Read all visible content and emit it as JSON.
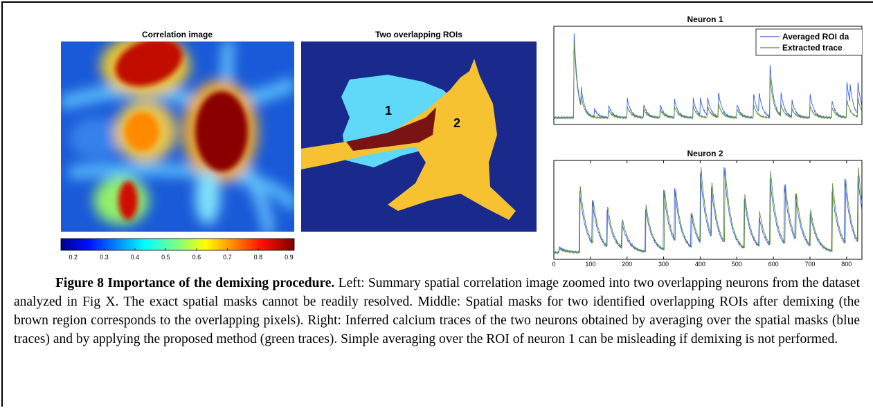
{
  "figure": {
    "panels": {
      "left": {
        "title": "Correlation image",
        "colorbar": {
          "lim": [
            0.16,
            0.917
          ],
          "ticks": [
            0.2,
            0.3,
            0.4,
            0.5,
            0.6,
            0.7,
            0.8,
            0.9
          ]
        }
      },
      "middle": {
        "title": "Two overlapping ROIs",
        "labels": [
          "1",
          "2"
        ]
      },
      "right": {
        "xlim": [
          0,
          842
        ],
        "ylim": [
          0,
          1
        ],
        "xticks": [
          0,
          100,
          200,
          300,
          400,
          500,
          600,
          700,
          800
        ],
        "legend": [
          "Averaged ROI da",
          "Extracted trace"
        ],
        "neurons": [
          {
            "title": "Neuron 1",
            "series": [
              {
                "color": "#3a5fe0",
                "events": [
                  [
                    55,
                    1.0
                  ],
                  [
                    75,
                    0.2
                  ],
                  [
                    110,
                    0.1
                  ],
                  [
                    150,
                    0.14
                  ],
                  [
                    200,
                    0.24
                  ],
                  [
                    245,
                    0.16
                  ],
                  [
                    290,
                    0.16
                  ],
                  [
                    330,
                    0.2
                  ],
                  [
                    380,
                    0.24
                  ],
                  [
                    400,
                    0.2
                  ],
                  [
                    420,
                    0.2
                  ],
                  [
                    450,
                    0.28
                  ],
                  [
                    500,
                    0.16
                  ],
                  [
                    545,
                    0.3
                  ],
                  [
                    560,
                    0.25
                  ],
                  [
                    590,
                    0.65
                  ],
                  [
                    620,
                    0.28
                  ],
                  [
                    650,
                    0.2
                  ],
                  [
                    700,
                    0.28
                  ],
                  [
                    760,
                    0.2
                  ],
                  [
                    800,
                    0.45
                  ],
                  [
                    810,
                    0.2
                  ],
                  [
                    830,
                    0.4
                  ]
                ]
              },
              {
                "color": "#5a8a3a",
                "events": [
                  [
                    55,
                    0.9
                  ],
                  [
                    75,
                    0.12
                  ],
                  [
                    150,
                    0.08
                  ],
                  [
                    200,
                    0.14
                  ],
                  [
                    245,
                    0.1
                  ],
                  [
                    290,
                    0.1
                  ],
                  [
                    330,
                    0.12
                  ],
                  [
                    380,
                    0.14
                  ],
                  [
                    420,
                    0.12
                  ],
                  [
                    450,
                    0.15
                  ],
                  [
                    500,
                    0.1
                  ],
                  [
                    545,
                    0.16
                  ],
                  [
                    590,
                    0.5
                  ],
                  [
                    620,
                    0.14
                  ],
                  [
                    650,
                    0.1
                  ],
                  [
                    700,
                    0.14
                  ],
                  [
                    760,
                    0.12
                  ],
                  [
                    800,
                    0.22
                  ],
                  [
                    830,
                    0.24
                  ]
                ]
              }
            ]
          },
          {
            "title": "Neuron 2",
            "series": [
              {
                "color": "#3a5fe0",
                "events": [
                  [
                    15,
                    0.06
                  ],
                  [
                    70,
                    0.7
                  ],
                  [
                    105,
                    0.48
                  ],
                  [
                    145,
                    0.42
                  ],
                  [
                    185,
                    0.3
                  ],
                  [
                    250,
                    0.5
                  ],
                  [
                    300,
                    0.66
                  ],
                  [
                    330,
                    0.58
                  ],
                  [
                    375,
                    0.38
                  ],
                  [
                    400,
                    0.8
                  ],
                  [
                    430,
                    0.58
                  ],
                  [
                    465,
                    0.86
                  ],
                  [
                    520,
                    0.58
                  ],
                  [
                    560,
                    0.36
                  ],
                  [
                    590,
                    0.8
                  ],
                  [
                    630,
                    0.66
                  ],
                  [
                    660,
                    0.52
                  ],
                  [
                    700,
                    0.38
                  ],
                  [
                    760,
                    0.7
                  ],
                  [
                    795,
                    0.72
                  ],
                  [
                    830,
                    0.8
                  ]
                ]
              },
              {
                "color": "#5a8a3a",
                "events": [
                  [
                    15,
                    0.04
                  ],
                  [
                    72,
                    0.75
                  ],
                  [
                    107,
                    0.5
                  ],
                  [
                    147,
                    0.45
                  ],
                  [
                    187,
                    0.33
                  ],
                  [
                    252,
                    0.52
                  ],
                  [
                    302,
                    0.7
                  ],
                  [
                    332,
                    0.6
                  ],
                  [
                    377,
                    0.4
                  ],
                  [
                    402,
                    0.85
                  ],
                  [
                    432,
                    0.6
                  ],
                  [
                    467,
                    0.9
                  ],
                  [
                    522,
                    0.6
                  ],
                  [
                    562,
                    0.4
                  ],
                  [
                    592,
                    0.85
                  ],
                  [
                    632,
                    0.7
                  ],
                  [
                    662,
                    0.55
                  ],
                  [
                    702,
                    0.4
                  ],
                  [
                    762,
                    0.75
                  ],
                  [
                    797,
                    0.75
                  ],
                  [
                    832,
                    0.85
                  ]
                ]
              }
            ]
          }
        ]
      }
    },
    "caption": {
      "bold": "Figure 8 Importance of the demixing procedure.",
      "text": " Left: Summary spatial correlation image zoomed into two overlapping neurons from the dataset analyzed in Fig X. The exact spatial masks cannot be readily resolved. Middle: Spatial masks for two identified overlapping ROIs after demixing (the brown region corresponds to the overlapping pixels). Right: Inferred calcium traces of the two neurons obtained by averaging over the spatial masks (blue traces) and by applying the proposed method (green traces). Simple averaging over the ROI of neuron 1 can be misleading if demixing is not performed."
    }
  }
}
